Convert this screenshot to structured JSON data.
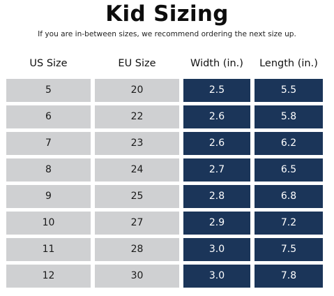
{
  "title": "Kid Sizing",
  "subtitle": "If you are in-between sizes, we recommend ordering the next size up.",
  "columns": [
    "US Size",
    "EU Size",
    "Width (in.)",
    "Length (in.)"
  ],
  "colors": {
    "light_cell": "#cfd0d2",
    "dark_cell": "#1b3559"
  },
  "rows": [
    [
      "5",
      "20",
      "2.5",
      "5.5"
    ],
    [
      "6",
      "22",
      "2.6",
      "5.8"
    ],
    [
      "7",
      "23",
      "2.6",
      "6.2"
    ],
    [
      "8",
      "24",
      "2.7",
      "6.5"
    ],
    [
      "9",
      "25",
      "2.8",
      "6.8"
    ],
    [
      "10",
      "27",
      "2.9",
      "7.2"
    ],
    [
      "11",
      "28",
      "3.0",
      "7.5"
    ],
    [
      "12",
      "30",
      "3.0",
      "7.8"
    ]
  ]
}
